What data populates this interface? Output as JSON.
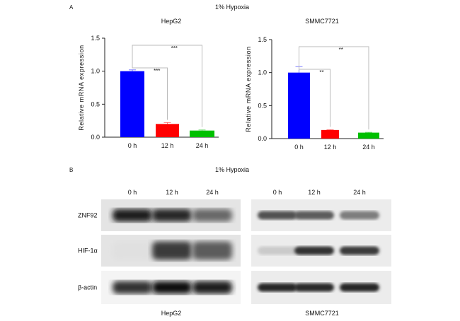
{
  "panel_a": {
    "letter": "A",
    "title": "1% Hypoxia"
  },
  "panel_b": {
    "letter": "B",
    "title": "1% Hypoxia",
    "lanes": [
      "0 h",
      "12 h",
      "24 h"
    ],
    "rows": [
      "ZNF92",
      "HIF-1α",
      "β-actin"
    ],
    "blots": [
      {
        "cell_line": "HepG2",
        "band_intensity": [
          [
            0.95,
            0.9,
            0.6
          ],
          [
            0.05,
            0.8,
            0.65
          ],
          [
            0.85,
            1.0,
            0.95
          ]
        ]
      },
      {
        "cell_line": "SMMC7721",
        "band_intensity": [
          [
            0.7,
            0.65,
            0.5
          ],
          [
            0.15,
            0.85,
            0.8
          ],
          [
            0.9,
            0.88,
            0.9
          ]
        ]
      }
    ]
  },
  "chart_data": [
    {
      "type": "bar",
      "title": "HepG2",
      "categories": [
        "0 h",
        "12 h",
        "24 h"
      ],
      "values": [
        1.0,
        0.2,
        0.1
      ],
      "errors": [
        0.02,
        0.02,
        0.01
      ],
      "colors": [
        "#0000ff",
        "#ff0000",
        "#00c000"
      ],
      "ylabel": "Relative mRNA expression",
      "ylim": [
        0,
        1.5
      ],
      "yticks": [
        "0.0",
        "0.5",
        "1.0",
        "1.5"
      ],
      "significance": [
        {
          "from": "0 h",
          "to": "12 h",
          "label": "***"
        },
        {
          "from": "0 h",
          "to": "24 h",
          "label": "***"
        }
      ]
    },
    {
      "type": "bar",
      "title": "SMMC7721",
      "categories": [
        "0 h",
        "12 h",
        "24 h"
      ],
      "values": [
        1.0,
        0.13,
        0.09
      ],
      "errors": [
        0.09,
        0.005,
        0.005
      ],
      "colors": [
        "#0000ff",
        "#ff0000",
        "#00c000"
      ],
      "ylabel": "Relative mRNA expression",
      "ylim": [
        0,
        1.5
      ],
      "yticks": [
        "0.0",
        "0.5",
        "1.0",
        "1.5"
      ],
      "significance": [
        {
          "from": "0 h",
          "to": "12 h",
          "label": "**"
        },
        {
          "from": "0 h",
          "to": "24 h",
          "label": "**"
        }
      ]
    }
  ]
}
